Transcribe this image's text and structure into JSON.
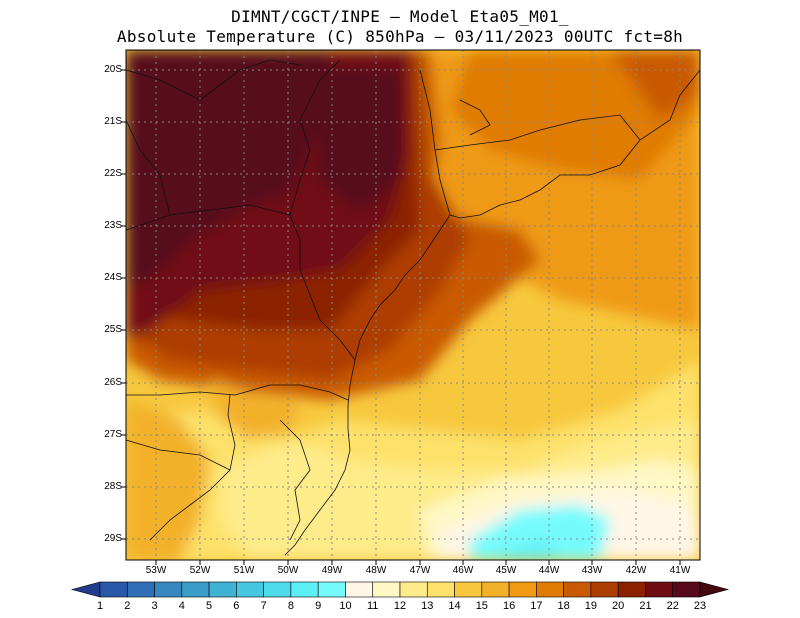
{
  "header": {
    "line1": "DIMNT/CGCT/INPE –  Model Eta05_M01_",
    "line2": "Absolute Temperature (C) 850hPa –  03/11/2023 00UTC fct=8h"
  },
  "map": {
    "lat_labels": [
      "20S",
      "21S",
      "22S",
      "23S",
      "24S",
      "25S",
      "26S",
      "27S",
      "28S",
      "29S"
    ],
    "lon_labels": [
      "53W",
      "52W",
      "51W",
      "50W",
      "49W",
      "48W",
      "47W",
      "46W",
      "45W",
      "44W",
      "43W",
      "42W",
      "41W"
    ]
  },
  "colorbar": {
    "labels": [
      "1",
      "2",
      "3",
      "4",
      "5",
      "6",
      "7",
      "8",
      "9",
      "10",
      "11",
      "12",
      "13",
      "14",
      "15",
      "16",
      "17",
      "18",
      "19",
      "20",
      "21",
      "22",
      "23"
    ],
    "colors": [
      "#233b8c",
      "#2a58a8",
      "#2e6fb6",
      "#3686bf",
      "#3b9cc9",
      "#40b2d4",
      "#46c7df",
      "#4fdcea",
      "#5eeef5",
      "#76fbfd",
      "#fff6e6",
      "#fef8c4",
      "#feeb8a",
      "#fde16b",
      "#f7c83e",
      "#f3b12a",
      "#ef9a12",
      "#e07b06",
      "#c95a03",
      "#ad3e02",
      "#8c2100",
      "#6f0d12",
      "#560a1c",
      "#440810"
    ]
  }
}
